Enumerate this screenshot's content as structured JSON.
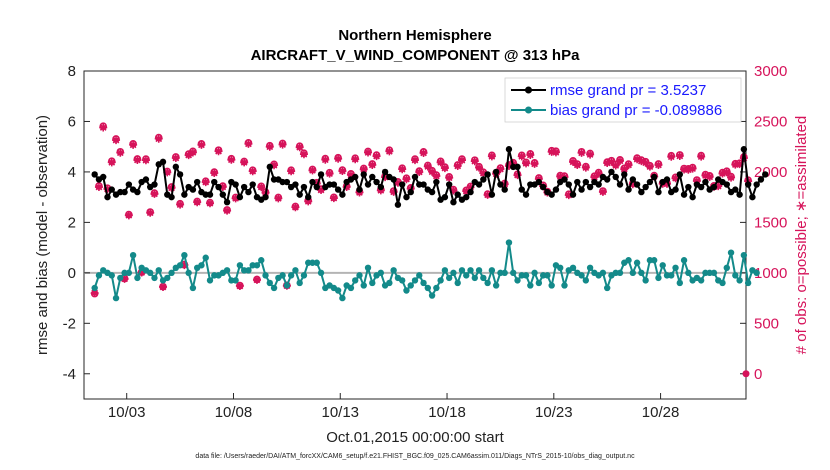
{
  "colors": {
    "rmse": "#000000",
    "bias": "#138a8a",
    "obs": "#d6135a",
    "zero_line": "#b4b4b4",
    "legend_text": "#1a1aff"
  },
  "chart_data": {
    "type": "line",
    "title_line1": "Northern Hemisphere",
    "title_line2": "AIRCRAFT_V_WIND_COMPONENT @ 313 hPa",
    "xlabel": "Oct.01,2015 00:00:00 start",
    "ylabel_left": "rmse and bias (model - observation)",
    "ylabel_right": "# of obs: o=possible; ∗=assimilated",
    "xlim": [
      0.5,
      31.5
    ],
    "ylim_left": [
      -5,
      8
    ],
    "ylim_right": [
      -250,
      3000
    ],
    "xticks": [
      2.5,
      7.5,
      12.5,
      17.5,
      22.5,
      27.5
    ],
    "xtick_labels": [
      "10/03",
      "10/08",
      "10/13",
      "10/18",
      "10/23",
      "10/28"
    ],
    "yticks_left": [
      -4,
      -2,
      0,
      2,
      4,
      6,
      8
    ],
    "yticks_right": [
      0,
      500,
      1000,
      1500,
      2000,
      2500,
      3000
    ],
    "footer": "data file: /Users/raeder/DAI/ATM_forcXX/CAM6_setup/f.e21.FHIST_BGC.f09_025.CAM6assim.011/Diags_NTrS_2015-10/obs_diag_output.nc",
    "legend": {
      "rmse_label": "rmse grand pr = 3.5237",
      "bias_label": "bias grand pr = -0.089886"
    },
    "series": [
      {
        "name": "rmse",
        "values": [
          3.9,
          3.7,
          3.8,
          3.0,
          3.3,
          3.1,
          3.2,
          3.2,
          3.5,
          3.3,
          3.2,
          3.6,
          3.7,
          3.4,
          3.5,
          4.3,
          4.4,
          3.1,
          3.0,
          4.2,
          3.9,
          3.1,
          3.4,
          3.3,
          3.6,
          3.2,
          3.1,
          3.1,
          3.6,
          3.4,
          3.1,
          2.8,
          3.6,
          3.5,
          3.0,
          3.4,
          3.2,
          3.5,
          3.0,
          2.9,
          3.0,
          4.2,
          3.7,
          3.7,
          3.6,
          3.6,
          3.4,
          3.5,
          3.1,
          3.4,
          3.0,
          3.6,
          3.4,
          3.9,
          3.4,
          3.5,
          3.5,
          3.3,
          3.1,
          3.6,
          3.7,
          3.8,
          3.3,
          3.9,
          3.5,
          3.8,
          3.6,
          3.4,
          4.0,
          3.8,
          3.7,
          2.7,
          3.5,
          3.0,
          3.2,
          3.8,
          3.5,
          3.5,
          3.3,
          3.2,
          3.6,
          2.9,
          3.0,
          3.5,
          2.8,
          3.1,
          2.9,
          3.0,
          3.2,
          3.6,
          3.5,
          3.7,
          3.9,
          3.1,
          4.0,
          3.5,
          3.3,
          4.9,
          4.2,
          4.2,
          3.3,
          3.1,
          3.5,
          3.5,
          3.6,
          3.4,
          3.2,
          3.1,
          3.3,
          3.6,
          3.7,
          3.5,
          3.1,
          3.6,
          3.3,
          3.6,
          3.4,
          3.6,
          3.5,
          3.8,
          3.7,
          4.0,
          3.8,
          3.5,
          3.9,
          3.3,
          3.7,
          3.5,
          3.2,
          3.4,
          3.6,
          3.8,
          3.2,
          3.6,
          3.7,
          3.2,
          3.3,
          3.9,
          3.1,
          3.4,
          3.0,
          3.5,
          3.4,
          3.6,
          3.3,
          3.4,
          3.7,
          3.6,
          3.5,
          3.2,
          3.3,
          3.1,
          4.9,
          3.5,
          3.0,
          3.5,
          3.7,
          3.9
        ]
      },
      {
        "name": "bias",
        "values": [
          -0.6,
          -0.1,
          0.1,
          0.0,
          -0.1,
          -1.0,
          -0.2,
          0.0,
          0.0,
          0.7,
          -0.2,
          0.2,
          0.1,
          0.0,
          -0.2,
          0.1,
          -0.3,
          -0.2,
          0.0,
          0.2,
          0.3,
          0.7,
          0.0,
          -0.6,
          0.2,
          0.3,
          0.6,
          -0.3,
          -0.1,
          -0.1,
          0.0,
          0.1,
          -0.3,
          -0.3,
          0.3,
          0.1,
          0.1,
          0.3,
          0.3,
          0.5,
          -0.1,
          -0.4,
          -0.6,
          -0.2,
          -0.1,
          -0.5,
          -0.1,
          0.1,
          -0.4,
          -0.1,
          0.4,
          0.4,
          0.4,
          0.0,
          -0.6,
          -0.5,
          -0.6,
          -0.7,
          -1.0,
          -0.5,
          -0.6,
          -0.3,
          -0.1,
          -0.5,
          0.2,
          -0.4,
          -0.1,
          0.0,
          -0.5,
          -0.4,
          0.1,
          -0.2,
          -0.3,
          -0.7,
          -0.5,
          -0.3,
          -0.1,
          -0.4,
          -0.6,
          -0.9,
          -0.6,
          -0.3,
          0.1,
          -0.2,
          0.0,
          -0.4,
          0.1,
          -0.1,
          0.1,
          -0.2,
          0.1,
          -0.2,
          -0.4,
          0.1,
          -0.5,
          0.0,
          0.0,
          1.2,
          0.0,
          -0.3,
          -0.1,
          -0.1,
          -0.5,
          0.0,
          -0.4,
          -0.1,
          -0.1,
          -0.5,
          0.3,
          0.2,
          -0.5,
          0.1,
          0.2,
          0.0,
          -0.1,
          -0.3,
          0.2,
          0.0,
          -0.1,
          0.0,
          -0.6,
          -0.1,
          0.0,
          0.0,
          0.4,
          0.5,
          0.0,
          0.4,
          0.0,
          -0.3,
          0.5,
          0.5,
          -0.2,
          0.3,
          -0.1,
          -0.1,
          0.2,
          -0.4,
          0.5,
          0.0,
          -0.3,
          -0.2,
          -0.3,
          0.0,
          0.0,
          0.0,
          -0.3,
          -0.4,
          0.2,
          0.8,
          -0.1,
          -0.3,
          0.7,
          -0.4,
          0.1,
          0.0
        ]
      },
      {
        "name": "obs_possible",
        "values": [
          794,
          1861,
          2453,
          1839,
          2106,
          2327,
          2200,
          945,
          1578,
          2279,
          2129,
          1008,
          2127,
          1603,
          1791,
          2341,
          864,
          2005,
          1851,
          2149,
          1685,
          1082,
          2177,
          2204,
          1708,
          2279,
          1908,
          1697,
          1999,
          2216,
          1860,
          1624,
          2131,
          1747,
          874,
          2104,
          2289,
          2017,
          935,
          1858,
          1802,
          2260,
          2076,
          1747,
          2282,
          876,
          2017,
          1658,
          2255,
          2186,
          1717,
          2025,
          1893,
          1830,
          2132,
          1993,
          1749,
          2141,
          2019,
          1860,
          1981,
          2136,
          1805,
          2035,
          2203,
          2079,
          2167,
          1826,
          1958,
          2215,
          1811,
          1902,
          2037,
          1938,
          1843,
          2128,
          2009,
          2199,
          2064,
          2012,
          1969,
          2105,
          2048,
          1952,
          1825,
          2069,
          2127,
          1818,
          1856,
          2117,
          2052,
          1997,
          1781,
          2165,
          1991,
          2038,
          1886,
          2069,
          2092,
          1978,
          2165,
          2095,
          2179,
          2090,
          1940,
          1867,
          1805,
          2210,
          2205,
          1964,
          1959,
          1779,
          2110,
          2078,
          2200,
          2053,
          2183,
          1958,
          1994,
          1811,
          2098,
          2112,
          2074,
          2120,
          2036,
          2078,
          1887,
          2137,
          2118,
          2102,
          2062,
          1964,
          2079,
          1892,
          1891,
          2161,
          1947,
          2169,
          2034,
          2031,
          2043,
          1920,
          2162,
          1974,
          1961,
          1862,
          1868,
          1994,
          2007,
          1954,
          2082,
          2087,
          2148,
          1918
        ]
      },
      {
        "name": "obs_assimilated",
        "values": [
          800,
          1850,
          2440,
          1830,
          2095,
          2315,
          2190,
          940,
          1570,
          2268,
          2118,
          1003,
          2116,
          1595,
          1782,
          2329,
          860,
          1995,
          1842,
          2138,
          1676,
          1077,
          2166,
          2193,
          1700,
          2268,
          1899,
          1689,
          1989,
          2205,
          1851,
          1616,
          2120,
          1738,
          870,
          2094,
          2278,
          2007,
          930,
          1849,
          1793,
          2249,
          2066,
          1738,
          2271,
          872,
          2007,
          1650,
          2244,
          2175,
          1708,
          2015,
          1884,
          1821,
          2121,
          1983,
          1740,
          2130,
          2009,
          1851,
          1971,
          2125,
          1796,
          2025,
          2192,
          2069,
          2156,
          1817,
          1948,
          2204,
          1802,
          1893,
          2027,
          1928,
          1834,
          2117,
          1999,
          2188,
          2054,
          2002,
          1959,
          2094,
          2038,
          1942,
          1816,
          2059,
          2116,
          1809,
          1847,
          2106,
          2042,
          1987,
          1772,
          2154,
          1981,
          2028,
          1877,
          2059,
          2082,
          1968,
          2154,
          2085,
          2168,
          2080,
          1930,
          1858,
          1796,
          2199,
          2194,
          1954,
          1949,
          1770,
          2099,
          2068,
          2189,
          2043,
          2172,
          1948,
          1984,
          1802,
          2088,
          2101,
          2064,
          2109,
          2026,
          2068,
          1878,
          2126,
          2107,
          2091,
          2052,
          1954,
          2069,
          1883,
          1882,
          2150,
          1937,
          2158,
          2024,
          2021,
          2033,
          1910,
          2151,
          1964,
          1951,
          1853,
          1859,
          1984,
          1997,
          1944,
          2072,
          2077,
          2137,
          1908
        ]
      }
    ]
  }
}
